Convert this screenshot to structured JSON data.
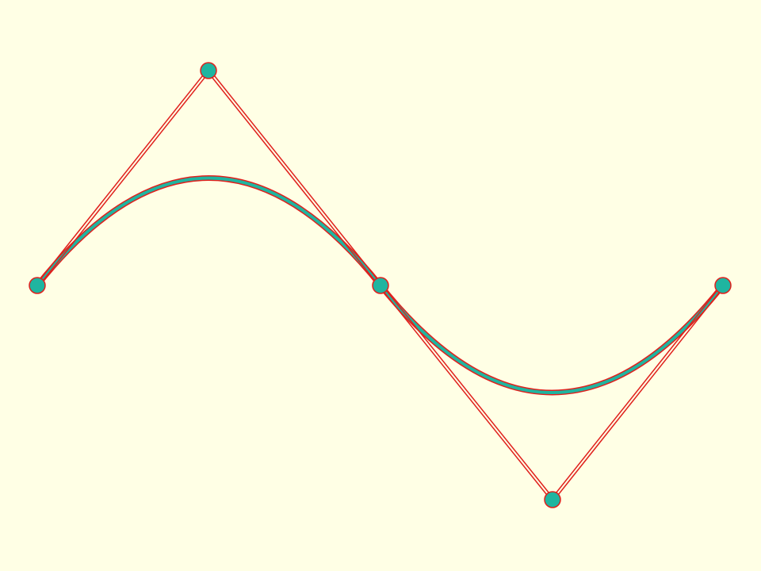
{
  "diagram": {
    "kind": "quadratic-bezier-spline-with-control-polygon",
    "colors": {
      "background": "#ffffe5",
      "point_fill": "#1fb5a0",
      "outline": "#e0201c",
      "curve_fill": "#1fb5a0"
    },
    "points": [
      {
        "id": "anchor-1",
        "role": "anchor"
      },
      {
        "id": "control-1",
        "role": "control"
      },
      {
        "id": "anchor-2",
        "role": "anchor"
      },
      {
        "id": "control-2",
        "role": "control"
      },
      {
        "id": "anchor-3",
        "role": "anchor"
      }
    ],
    "segments": [
      {
        "from": "anchor-1",
        "control": "control-1",
        "to": "anchor-2"
      },
      {
        "from": "anchor-2",
        "control": "control-2",
        "to": "anchor-3"
      }
    ]
  }
}
